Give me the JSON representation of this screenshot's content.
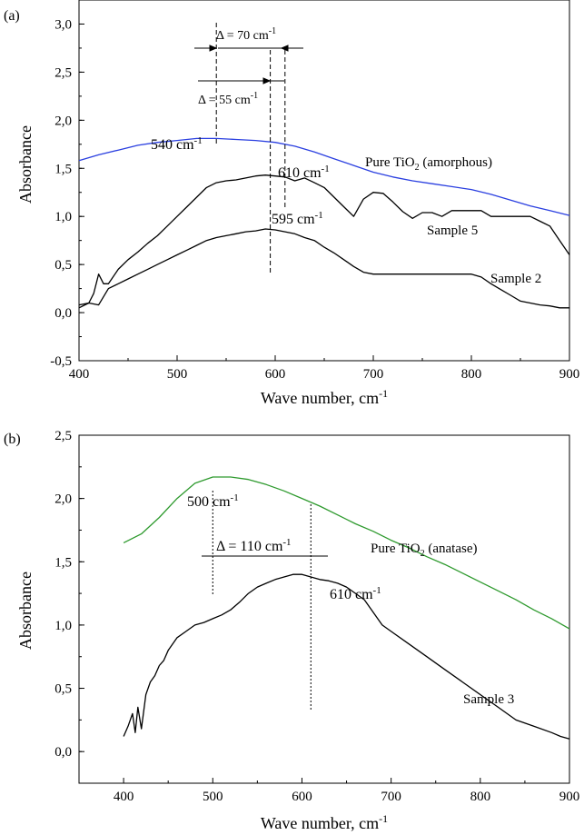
{
  "chart_data": [
    {
      "panel_label": "(a)",
      "type": "line",
      "xlabel": "Wave number, cm",
      "xlabel_sup": "-1",
      "ylabel": "Absorbance",
      "xlim": [
        400,
        900
      ],
      "ylim": [
        -0.5,
        3.25
      ],
      "xticks": [
        400,
        500,
        600,
        700,
        800,
        900
      ],
      "yticks": [
        -0.5,
        0.0,
        0.5,
        1.0,
        1.5,
        2.0,
        2.5,
        3.0
      ],
      "ytick_labels": [
        "-0,5",
        "0,0",
        "0,5",
        "1,0",
        "1,5",
        "2,0",
        "2,5",
        "3,0"
      ],
      "series": [
        {
          "name": "Pure TiO",
          "name_sub": "2",
          "name_suffix": " (amorphous)",
          "color": "#2a3fe0",
          "x": [
            400,
            420,
            440,
            460,
            480,
            500,
            520,
            540,
            560,
            580,
            600,
            620,
            640,
            660,
            680,
            700,
            720,
            740,
            760,
            780,
            800,
            820,
            840,
            860,
            880,
            900
          ],
          "y": [
            1.58,
            1.64,
            1.69,
            1.74,
            1.77,
            1.79,
            1.81,
            1.81,
            1.8,
            1.79,
            1.77,
            1.73,
            1.67,
            1.6,
            1.53,
            1.46,
            1.41,
            1.37,
            1.34,
            1.31,
            1.28,
            1.23,
            1.17,
            1.11,
            1.06,
            1.01
          ]
        },
        {
          "name": "Sample 5",
          "color": "#000000",
          "x": [
            400,
            410,
            415,
            420,
            425,
            430,
            440,
            450,
            460,
            470,
            480,
            490,
            500,
            510,
            520,
            530,
            540,
            550,
            560,
            570,
            580,
            590,
            600,
            610,
            620,
            630,
            640,
            650,
            660,
            670,
            680,
            690,
            700,
            710,
            720,
            730,
            740,
            750,
            760,
            770,
            780,
            790,
            800,
            810,
            820,
            830,
            840,
            850,
            860,
            870,
            880,
            890,
            900
          ],
          "y": [
            0.05,
            0.1,
            0.2,
            0.4,
            0.3,
            0.3,
            0.45,
            0.55,
            0.63,
            0.72,
            0.8,
            0.9,
            1.0,
            1.1,
            1.2,
            1.3,
            1.35,
            1.37,
            1.38,
            1.4,
            1.42,
            1.43,
            1.42,
            1.41,
            1.37,
            1.4,
            1.35,
            1.3,
            1.2,
            1.1,
            1.0,
            1.18,
            1.25,
            1.24,
            1.15,
            1.05,
            0.98,
            1.04,
            1.04,
            1.0,
            1.06,
            1.06,
            1.06,
            1.06,
            1.0,
            1.0,
            1.0,
            1.0,
            1.0,
            0.95,
            0.9,
            0.75,
            0.6
          ]
        },
        {
          "name": "Sample 2",
          "color": "#000000",
          "x": [
            400,
            410,
            420,
            430,
            440,
            450,
            460,
            470,
            480,
            490,
            500,
            510,
            520,
            530,
            540,
            550,
            560,
            570,
            580,
            590,
            600,
            610,
            620,
            630,
            640,
            650,
            660,
            670,
            680,
            690,
            700,
            710,
            720,
            730,
            740,
            750,
            760,
            770,
            780,
            790,
            800,
            810,
            820,
            830,
            840,
            850,
            860,
            870,
            880,
            890,
            900
          ],
          "y": [
            0.08,
            0.1,
            0.08,
            0.25,
            0.3,
            0.35,
            0.4,
            0.45,
            0.5,
            0.55,
            0.6,
            0.65,
            0.7,
            0.75,
            0.78,
            0.8,
            0.82,
            0.84,
            0.85,
            0.87,
            0.86,
            0.84,
            0.82,
            0.78,
            0.75,
            0.68,
            0.62,
            0.55,
            0.48,
            0.42,
            0.4,
            0.4,
            0.4,
            0.4,
            0.4,
            0.4,
            0.4,
            0.4,
            0.4,
            0.4,
            0.4,
            0.37,
            0.3,
            0.24,
            0.18,
            0.12,
            0.1,
            0.08,
            0.07,
            0.05,
            0.05
          ]
        }
      ],
      "annotations": [
        {
          "text": "540 cm",
          "sup": "-1"
        },
        {
          "text": "610 cm",
          "sup": "-1"
        },
        {
          "text": "595 cm",
          "sup": "-1"
        },
        {
          "text": "Δ = 70 cm",
          "sup": "-1"
        },
        {
          "text": "Δ = 55 cm",
          "sup": "-1"
        }
      ],
      "markers_x": [
        540,
        595,
        610
      ]
    },
    {
      "panel_label": "(b)",
      "type": "line",
      "xlabel": "Wave number, cm",
      "xlabel_sup": "-1",
      "ylabel": "Absorbance",
      "xlim": [
        350,
        900
      ],
      "ylim": [
        -0.25,
        2.5
      ],
      "xticks": [
        400,
        500,
        600,
        700,
        800,
        900
      ],
      "yticks": [
        0.0,
        0.5,
        1.0,
        1.5,
        2.0,
        2.5
      ],
      "ytick_labels": [
        "0,0",
        "0,5",
        "1,0",
        "1,5",
        "2,0",
        "2,5"
      ],
      "series": [
        {
          "name": "Pure TiO",
          "name_sub": "2",
          "name_suffix": " (anatase)",
          "color": "#2e9a2e",
          "x": [
            400,
            420,
            440,
            460,
            480,
            500,
            520,
            540,
            560,
            580,
            600,
            620,
            640,
            660,
            680,
            700,
            720,
            740,
            760,
            780,
            800,
            820,
            840,
            860,
            880,
            900
          ],
          "y": [
            1.65,
            1.72,
            1.85,
            2.0,
            2.12,
            2.17,
            2.17,
            2.15,
            2.11,
            2.06,
            2.0,
            1.94,
            1.87,
            1.8,
            1.74,
            1.67,
            1.61,
            1.54,
            1.48,
            1.41,
            1.34,
            1.27,
            1.2,
            1.12,
            1.05,
            0.97
          ]
        },
        {
          "name": "Sample 3",
          "color": "#000000",
          "x": [
            400,
            405,
            410,
            413,
            416,
            420,
            425,
            430,
            435,
            440,
            445,
            450,
            460,
            470,
            480,
            490,
            500,
            510,
            520,
            530,
            540,
            550,
            560,
            570,
            580,
            590,
            600,
            610,
            620,
            630,
            640,
            650,
            660,
            670,
            680,
            690,
            700,
            720,
            740,
            760,
            780,
            800,
            820,
            840,
            860,
            880,
            890,
            900
          ],
          "y": [
            0.12,
            0.2,
            0.3,
            0.15,
            0.35,
            0.18,
            0.45,
            0.55,
            0.6,
            0.68,
            0.72,
            0.8,
            0.9,
            0.95,
            1.0,
            1.02,
            1.05,
            1.08,
            1.12,
            1.18,
            1.25,
            1.3,
            1.33,
            1.36,
            1.38,
            1.4,
            1.4,
            1.38,
            1.36,
            1.35,
            1.33,
            1.3,
            1.25,
            1.2,
            1.1,
            1.0,
            0.95,
            0.85,
            0.75,
            0.65,
            0.55,
            0.45,
            0.35,
            0.25,
            0.2,
            0.15,
            0.12,
            0.1
          ]
        }
      ],
      "annotations": [
        {
          "text": "500 cm",
          "sup": "-1"
        },
        {
          "text": "610 cm",
          "sup": "-1"
        },
        {
          "text": "Δ = 110 cm",
          "sup": "-1"
        }
      ],
      "markers_x": [
        500,
        610
      ]
    }
  ]
}
